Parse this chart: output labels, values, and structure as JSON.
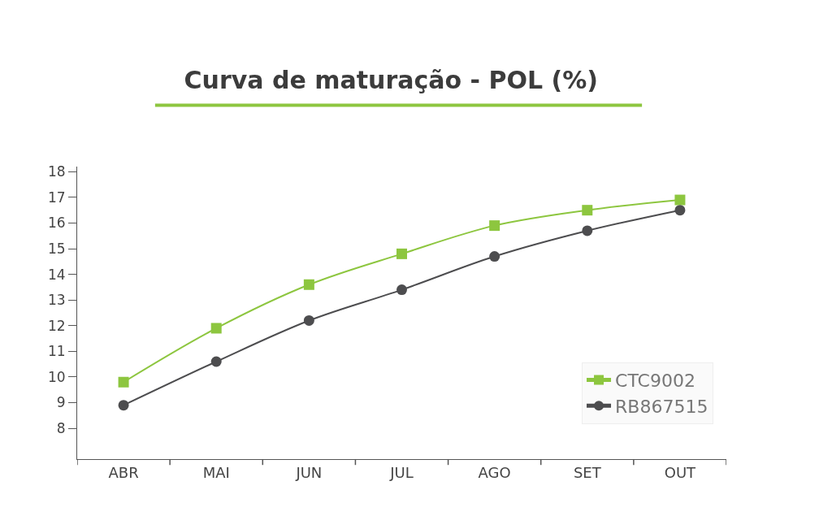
{
  "chart_data": {
    "type": "line",
    "title": "Curva de maturação - POL (%)",
    "categories": [
      "ABR",
      "MAI",
      "JUN",
      "JUL",
      "AGO",
      "SET",
      "OUT"
    ],
    "series": [
      {
        "name": "CTC9002",
        "color": "#8dc63f",
        "marker": "square",
        "values": [
          9.8,
          11.9,
          13.6,
          14.8,
          15.9,
          16.5,
          16.9
        ]
      },
      {
        "name": "RB867515",
        "color": "#4d4d4f",
        "marker": "circle",
        "values": [
          8.9,
          10.6,
          12.2,
          13.4,
          14.7,
          15.7,
          16.5
        ]
      }
    ],
    "ylim": [
      6.8,
      18.2
    ],
    "yticks": [
      8,
      9,
      10,
      11,
      12,
      13,
      14,
      15,
      16,
      17,
      18
    ],
    "legend": "bottom right",
    "line_style": "solid"
  }
}
